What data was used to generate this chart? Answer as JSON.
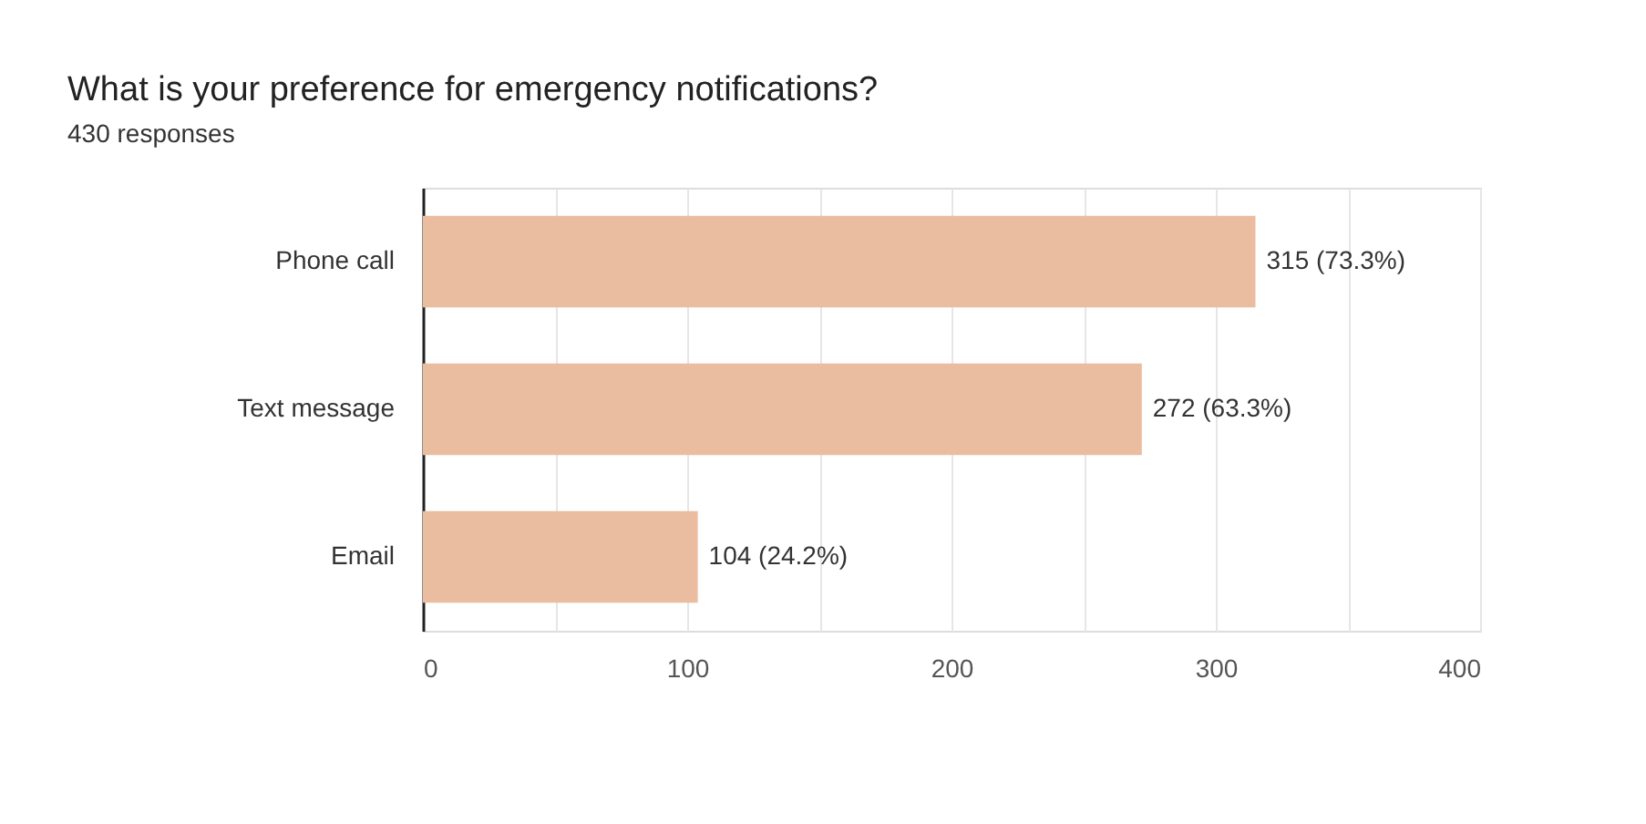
{
  "chart_data": {
    "type": "bar",
    "orientation": "horizontal",
    "title": "What is your preference for emergency notifications?",
    "subtitle": "430 responses",
    "categories": [
      "Phone call",
      "Text message",
      "Email"
    ],
    "values": [
      315,
      272,
      104
    ],
    "value_labels": [
      "315 (73.3%)",
      "272 (63.3%)",
      "104 (24.2%)"
    ],
    "color": "#ebbda0",
    "xlim": [
      0,
      400
    ],
    "xticks": [
      0,
      {
        "value": 50,
        "label": null
      },
      100,
      {
        "value": 150,
        "label": null
      },
      200,
      {
        "value": 250,
        "label": null
      },
      300,
      {
        "value": 350,
        "label": null
      },
      400
    ],
    "grid": "x"
  }
}
